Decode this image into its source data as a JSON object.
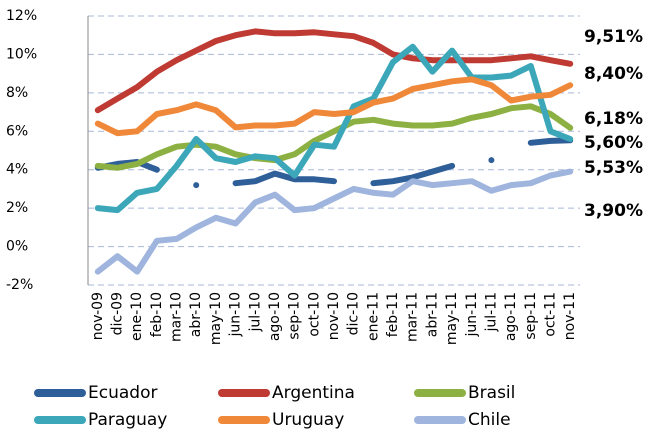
{
  "chart_data": {
    "type": "line",
    "categories": [
      "nov-09",
      "dic-09",
      "ene-10",
      "feb-10",
      "mar-10",
      "abr-10",
      "may-10",
      "jun-10",
      "jul-10",
      "ago-10",
      "sep-10",
      "oct-10",
      "nov-10",
      "dic-10",
      "ene-11",
      "feb-11",
      "mar-11",
      "abr-11",
      "may-11",
      "jun-11",
      "jul-11",
      "ago-11",
      "sep-11",
      "oct-11",
      "nov-11"
    ],
    "ylim": [
      -2,
      12
    ],
    "yticks": [
      {
        "value": -2,
        "label": "-2%"
      },
      {
        "value": 0,
        "label": "0%"
      },
      {
        "value": 2,
        "label": "2%"
      },
      {
        "value": 4,
        "label": "4%"
      },
      {
        "value": 6,
        "label": "6%"
      },
      {
        "value": 8,
        "label": "8%"
      },
      {
        "value": 10,
        "label": "10%"
      },
      {
        "value": 12,
        "label": "12%"
      }
    ],
    "grid": true,
    "legend": "bottom",
    "series": [
      {
        "name": "Ecuador",
        "color": "#2f5f98",
        "label_color": "#1f3864",
        "values": [
          4.1,
          4.3,
          4.4,
          4.0,
          null,
          3.2,
          null,
          3.3,
          3.4,
          3.8,
          3.5,
          3.5,
          3.4,
          null,
          3.3,
          3.4,
          3.6,
          3.9,
          4.2,
          null,
          4.5,
          null,
          5.4,
          5.5,
          5.53
        ],
        "value_labels": [
          null,
          null,
          null,
          null,
          null,
          null,
          null,
          null,
          null,
          null,
          null,
          null,
          null,
          null,
          null,
          null,
          null,
          null,
          null,
          null,
          null,
          null,
          null,
          null,
          "5,53%"
        ]
      },
      {
        "name": "Argentina",
        "color": "#be3a32",
        "label_color": "#c00000",
        "values": [
          7.1,
          7.7,
          8.3,
          9.1,
          9.7,
          10.2,
          10.7,
          11.0,
          11.2,
          11.1,
          11.1,
          11.15,
          11.05,
          10.95,
          10.6,
          10.0,
          9.8,
          9.7,
          9.7,
          9.7,
          9.7,
          9.8,
          9.9,
          9.7,
          9.51
        ],
        "value_labels": [
          null,
          null,
          null,
          null,
          null,
          null,
          null,
          null,
          null,
          null,
          null,
          null,
          null,
          null,
          null,
          null,
          null,
          null,
          null,
          null,
          null,
          null,
          null,
          null,
          "9,51%"
        ]
      },
      {
        "name": "Brasil",
        "color": "#8db043",
        "label_color": "#77933c",
        "values": [
          4.2,
          4.1,
          4.3,
          4.8,
          5.2,
          5.3,
          5.2,
          4.8,
          4.6,
          4.5,
          4.8,
          5.5,
          6.0,
          6.5,
          6.6,
          6.4,
          6.3,
          6.3,
          6.4,
          6.7,
          6.9,
          7.2,
          7.3,
          6.9,
          6.18
        ],
        "value_labels": [
          null,
          null,
          null,
          null,
          null,
          null,
          null,
          null,
          null,
          null,
          null,
          null,
          null,
          null,
          null,
          null,
          null,
          null,
          null,
          null,
          null,
          null,
          null,
          null,
          "6,18%"
        ]
      },
      {
        "name": "Paraguay",
        "color": "#3ba7b8",
        "label_color": "#31859c",
        "values": [
          2.0,
          1.9,
          2.8,
          3.0,
          4.2,
          5.6,
          4.6,
          4.4,
          4.7,
          4.6,
          3.7,
          5.3,
          5.2,
          7.3,
          7.7,
          9.6,
          10.4,
          9.1,
          10.2,
          8.8,
          8.8,
          8.9,
          9.4,
          6.0,
          5.6
        ],
        "value_labels": [
          null,
          null,
          null,
          null,
          null,
          null,
          null,
          null,
          null,
          null,
          null,
          null,
          null,
          null,
          null,
          null,
          null,
          null,
          null,
          null,
          null,
          null,
          null,
          null,
          "5,60%"
        ]
      },
      {
        "name": "Uruguay",
        "color": "#f0883a",
        "label_color": "#e46c0a",
        "values": [
          6.4,
          5.9,
          6.0,
          6.9,
          7.1,
          7.4,
          7.1,
          6.2,
          6.3,
          6.3,
          6.4,
          7.0,
          6.9,
          7.0,
          7.5,
          7.7,
          8.2,
          8.4,
          8.6,
          8.7,
          8.4,
          7.6,
          7.8,
          7.9,
          8.4
        ],
        "value_labels": [
          null,
          null,
          null,
          null,
          null,
          null,
          null,
          null,
          null,
          null,
          null,
          null,
          null,
          null,
          null,
          null,
          null,
          null,
          null,
          null,
          null,
          null,
          null,
          null,
          "8,40%"
        ]
      },
      {
        "name": "Chile",
        "color": "#9fb5de",
        "label_color": "#4f72a8",
        "values": [
          -1.3,
          -0.5,
          -1.3,
          0.3,
          0.4,
          1.0,
          1.5,
          1.2,
          2.3,
          2.7,
          1.9,
          2.0,
          2.5,
          3.0,
          2.8,
          2.7,
          3.4,
          3.2,
          3.3,
          3.4,
          2.9,
          3.2,
          3.3,
          3.7,
          3.9
        ],
        "value_labels": [
          null,
          null,
          null,
          null,
          null,
          null,
          null,
          null,
          null,
          null,
          null,
          null,
          null,
          null,
          null,
          null,
          null,
          null,
          null,
          null,
          null,
          null,
          null,
          null,
          "3,90%"
        ]
      }
    ]
  }
}
